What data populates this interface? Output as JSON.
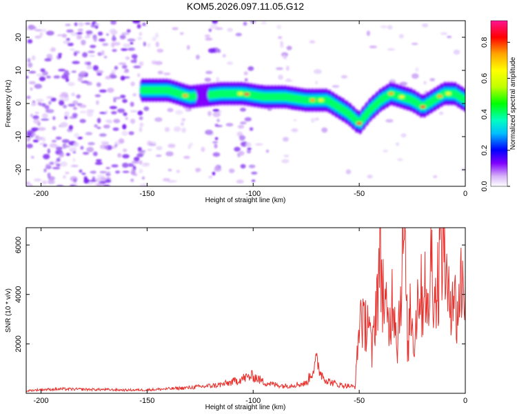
{
  "figure_title": "KOM5.2026.097.11.05.G12",
  "chart_data": [
    {
      "type": "heatmap",
      "title": "KOM5.2026.097.11.05.G12",
      "xlabel": "Height of straight line (km)",
      "ylabel": "Frequency (Hz)",
      "xlim": [
        -207,
        0
      ],
      "ylim": [
        -25,
        25
      ],
      "xticks": [
        -200,
        -150,
        -100,
        -50,
        0
      ],
      "yticks": [
        -20,
        -10,
        0,
        10,
        20
      ],
      "colorbar": {
        "label": "Normalized spectral amplitude",
        "range": [
          0.0,
          0.92
        ],
        "ticks": [
          0.0,
          0.2,
          0.4,
          0.6,
          0.8
        ],
        "colormap": [
          "#ffffff",
          "#d8b4f8",
          "#8000ff",
          "#0000ff",
          "#00bfff",
          "#00ffc0",
          "#00ff00",
          "#c0ff00",
          "#ffff00",
          "#ffa500",
          "#ff0000",
          "#ff1493"
        ]
      },
      "ridge": {
        "description_points_x": [
          -150,
          -140,
          -130,
          -115,
          -105,
          -95,
          -85,
          -75,
          -65,
          -60,
          -55,
          -50,
          -45,
          -40,
          -35,
          -30,
          -25,
          -20,
          -15,
          -10,
          -5,
          0
        ],
        "frequency_hz": [
          4,
          4,
          2,
          3,
          3,
          2,
          2,
          1,
          1,
          -1,
          -3,
          -6,
          -2,
          1,
          3,
          2,
          1,
          -1,
          1,
          3,
          3,
          1
        ]
      }
    },
    {
      "type": "line",
      "xlabel": "Height of straight line (km)",
      "ylabel": "SNR (10 * v/v)",
      "xlim": [
        -207,
        0
      ],
      "ylim": [
        0,
        6700
      ],
      "xticks": [
        -200,
        -150,
        -100,
        -50,
        0
      ],
      "yticks": [
        2000,
        4000,
        6000
      ],
      "series": [
        {
          "name": "SNR",
          "color": "#e8302c",
          "x": [
            -207,
            -200,
            -190,
            -180,
            -170,
            -160,
            -150,
            -140,
            -130,
            -120,
            -115,
            -110,
            -105,
            -100,
            -95,
            -90,
            -85,
            -80,
            -75,
            -72,
            -70,
            -68,
            -65,
            -60,
            -55,
            -52,
            -50,
            -49,
            -48,
            -46,
            -44,
            -42,
            -40,
            -38,
            -36,
            -34,
            -32,
            -30,
            -29,
            -28,
            -27,
            -26,
            -24,
            -22,
            -20,
            -19,
            -18,
            -16,
            -14,
            -12,
            -10,
            -9,
            -8,
            -6,
            -4,
            -2,
            0
          ],
          "y": [
            100,
            150,
            170,
            160,
            150,
            130,
            140,
            180,
            230,
            300,
            350,
            450,
            600,
            700,
            450,
            350,
            300,
            350,
            400,
            900,
            1300,
            800,
            500,
            350,
            300,
            250,
            2700,
            3600,
            2500,
            3300,
            1500,
            3800,
            5400,
            3500,
            2500,
            4300,
            2000,
            5000,
            6650,
            4200,
            1500,
            3700,
            2000,
            4500,
            3600,
            5300,
            2600,
            5600,
            3700,
            5500,
            6700,
            4500,
            3500,
            4600,
            3000,
            4500,
            4300
          ]
        }
      ]
    }
  ]
}
